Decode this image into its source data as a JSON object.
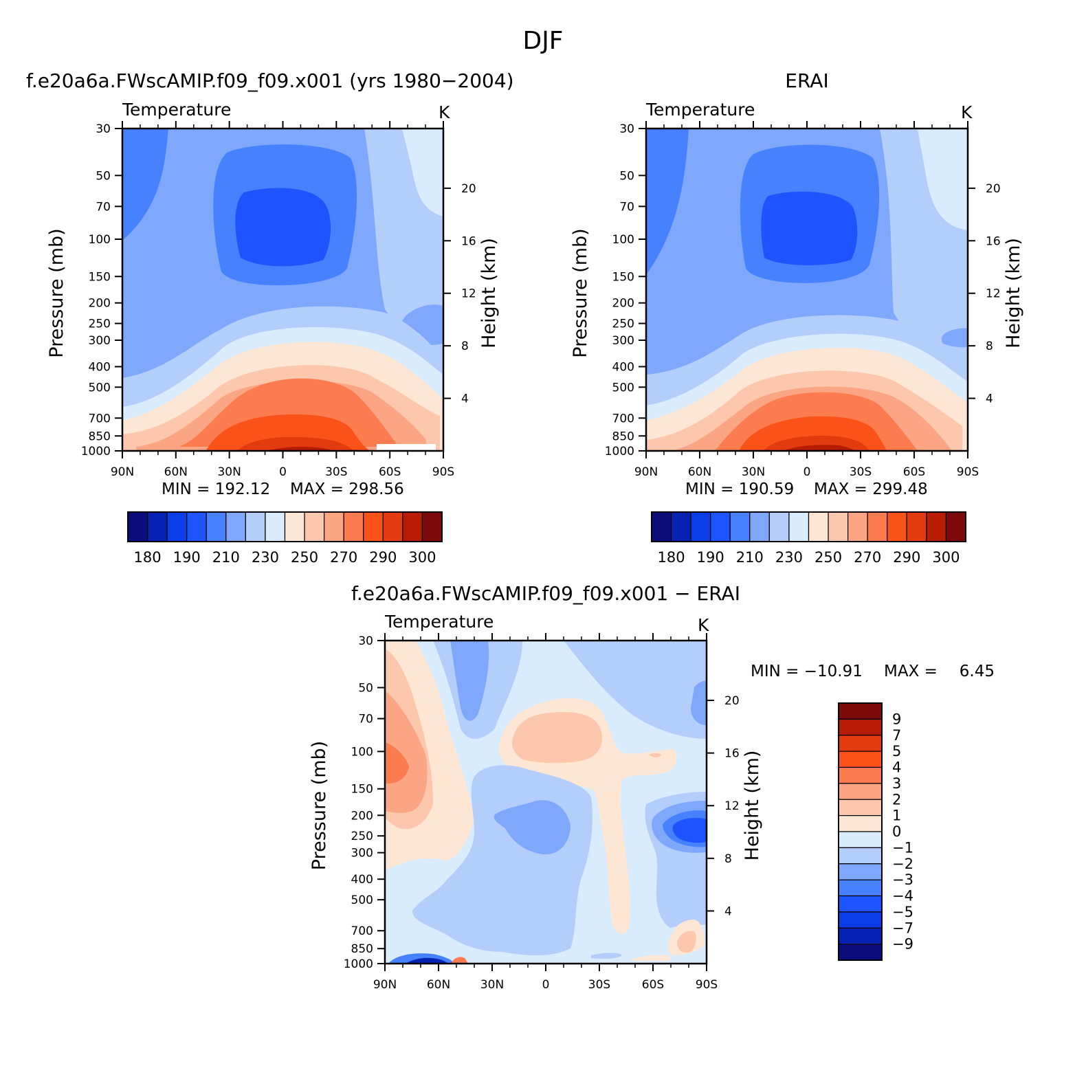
{
  "figure": {
    "title": "DJF"
  },
  "axes_common": {
    "pressure_ticks": [
      "30",
      "50",
      "70",
      "100",
      "150",
      "200",
      "250",
      "300",
      "400",
      "500",
      "700",
      "850",
      "1000"
    ],
    "pressure_values": [
      30,
      50,
      70,
      100,
      150,
      200,
      250,
      300,
      400,
      500,
      700,
      850,
      1000
    ],
    "height_ticks": [
      "4",
      "8",
      "12",
      "16",
      "20"
    ],
    "height_values": [
      4,
      8,
      12,
      16,
      20
    ],
    "lat_ticks": [
      "90N",
      "60N",
      "30N",
      "0",
      "30S",
      "60S",
      "90S"
    ],
    "lat_values": [
      90,
      60,
      30,
      0,
      -30,
      -60,
      -90
    ],
    "ylabel_left": "Pressure (mb)",
    "ylabel_right": "Height (km)",
    "field_label": "Temperature",
    "units": "K"
  },
  "chart_data": [
    {
      "type": "contour",
      "title": "f.e20a6a.FWscAMIP.f09_f09.x001 (yrs 1980−2004)",
      "field": "Temperature",
      "units": "K",
      "min_label": "MIN",
      "min": "192.12",
      "max_label": "MAX",
      "max": "298.56",
      "xlim": [
        90,
        -90
      ],
      "ylim": [
        1000,
        30
      ],
      "y_scale": "log",
      "colorbar": {
        "orientation": "horizontal",
        "labels": [
          "180",
          "190",
          "210",
          "230",
          "250",
          "270",
          "290",
          "300"
        ],
        "colors": [
          "#0a0d7a",
          "#0522b3",
          "#0b3ee6",
          "#1c54ff",
          "#4681ff",
          "#7fa7fb",
          "#b4cefb",
          "#d9ecfd",
          "#fde6d3",
          "#fcc7ac",
          "#fca585",
          "#fc7c4f",
          "#fa5219",
          "#e13b0f",
          "#b71c05",
          "#7d0a0a"
        ]
      }
    },
    {
      "type": "contour",
      "title": "ERAI",
      "field": "Temperature",
      "units": "K",
      "min_label": "MIN",
      "min": "190.59",
      "max_label": "MAX",
      "max": "299.48",
      "xlim": [
        90,
        -90
      ],
      "ylim": [
        1000,
        30
      ],
      "y_scale": "log",
      "colorbar": {
        "orientation": "horizontal",
        "labels": [
          "180",
          "190",
          "210",
          "230",
          "250",
          "270",
          "290",
          "300"
        ],
        "colors": [
          "#0a0d7a",
          "#0522b3",
          "#0b3ee6",
          "#1c54ff",
          "#4681ff",
          "#7fa7fb",
          "#b4cefb",
          "#d9ecfd",
          "#fde6d3",
          "#fcc7ac",
          "#fca585",
          "#fc7c4f",
          "#fa5219",
          "#e13b0f",
          "#b71c05",
          "#7d0a0a"
        ]
      }
    },
    {
      "type": "contour",
      "title": "f.e20a6a.FWscAMIP.f09_f09.x001 − ERAI",
      "field": "Temperature",
      "units": "K",
      "min_label": "MIN",
      "min": "−10.91",
      "max_label": "MAX",
      "max": "6.45",
      "xlim": [
        90,
        -90
      ],
      "ylim": [
        1000,
        30
      ],
      "y_scale": "log",
      "colorbar": {
        "orientation": "vertical",
        "labels": [
          "9",
          "7",
          "5",
          "4",
          "3",
          "2",
          "1",
          "0",
          "−1",
          "−2",
          "−3",
          "−4",
          "−5",
          "−7",
          "−9"
        ],
        "colors": [
          "#7d0a0a",
          "#b71c05",
          "#e13b0f",
          "#fa5219",
          "#fc7c4f",
          "#fca585",
          "#fcc7ac",
          "#fde6d3",
          "#d9ecfd",
          "#b4cefb",
          "#7fa7fb",
          "#4681ff",
          "#1c54ff",
          "#0b3ee6",
          "#0522b3",
          "#0a0d7a"
        ]
      }
    }
  ]
}
